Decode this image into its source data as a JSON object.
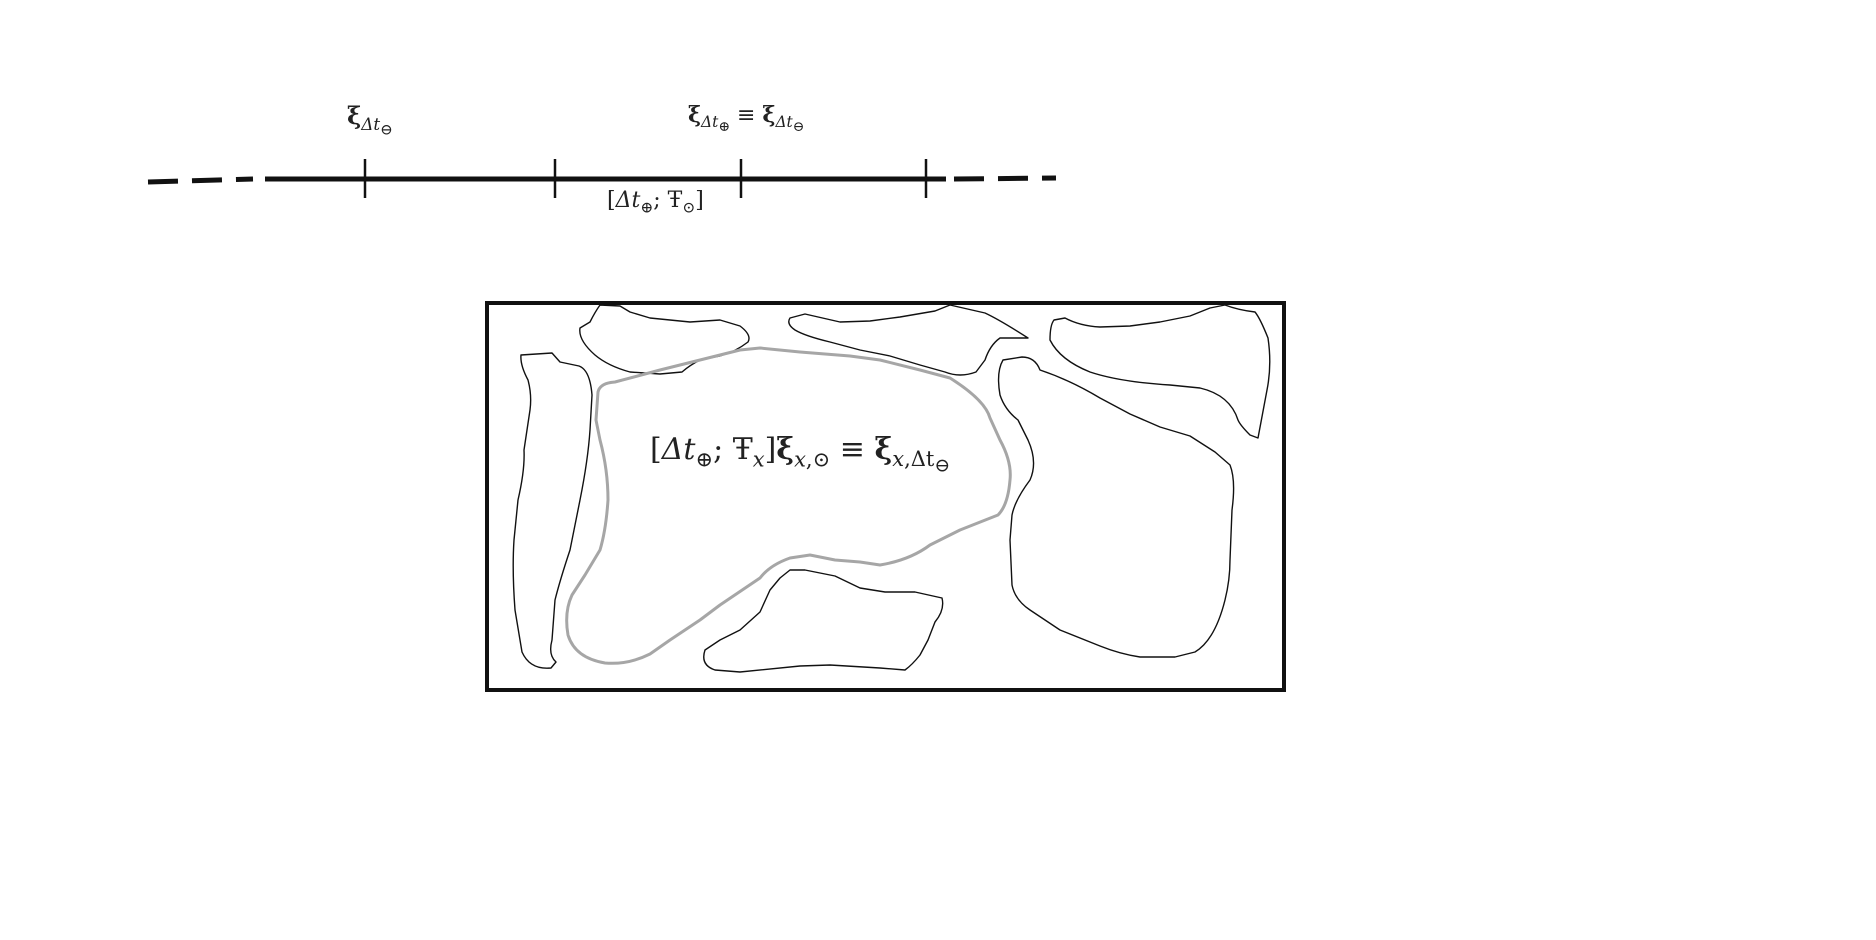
{
  "timeline": {
    "label_xi_minus": {
      "symbol": "ξ",
      "subscript": "Δt",
      "sub_sub": "⊖"
    },
    "label_equivalence": {
      "lhs_symbol": "ξ",
      "lhs_subscript": "Δt",
      "lhs_sub_sub": "⊕",
      "operator": "≡",
      "rhs_symbol": "ξ",
      "rhs_subscript": "Δt",
      "rhs_sub_sub": "⊖"
    },
    "label_interval": {
      "open": "[",
      "delta_t": "Δt",
      "plus": "⊕",
      "separator": "; ",
      "tau": "Ŧ",
      "odot": "⊙",
      "close": "]"
    }
  },
  "region": {
    "equation": {
      "open": "[",
      "delta_t": "Δt",
      "plus": "⊕",
      "separator": "; ",
      "tau": "Ŧ",
      "tau_sub": "x",
      "close": "]",
      "xi_left": "ξ",
      "xi_left_sub_x": "x",
      "xi_left_sub_rest": ",⊙",
      "operator": "≡",
      "xi_right": "ξ",
      "xi_right_sub_x": "x",
      "xi_right_sub_mid": ",Δt",
      "xi_right_sub_sub": "⊖"
    },
    "highlight_color": "#a6a6a6",
    "outline_color": "#111111"
  }
}
